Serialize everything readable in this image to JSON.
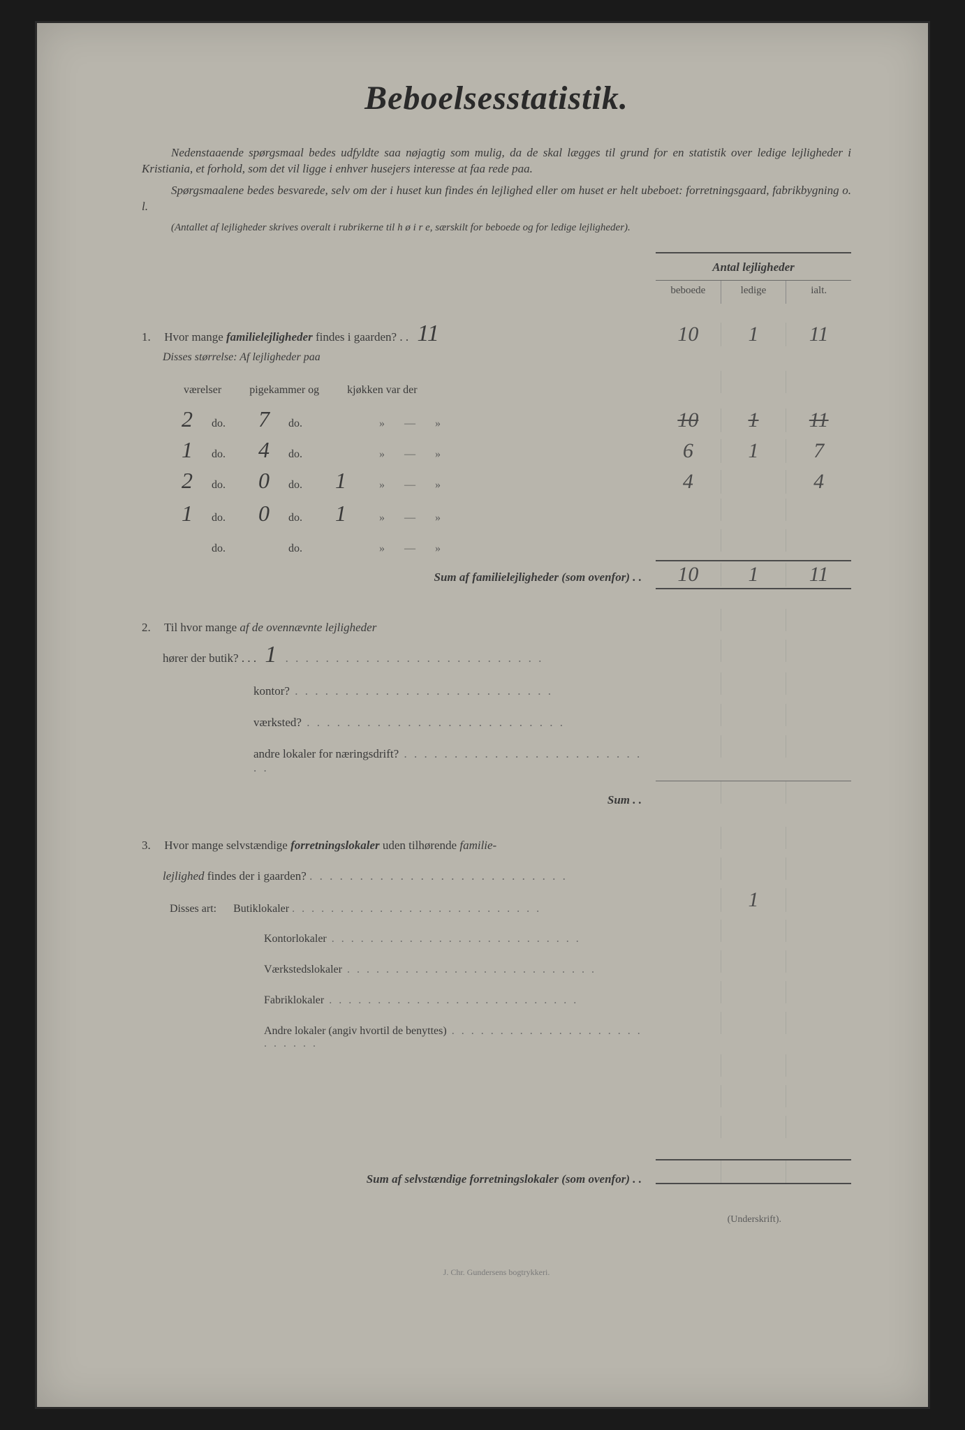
{
  "colors": {
    "page_bg": "#b8b5ac",
    "frame_bg": "#1a1a1a",
    "text": "#3a3a3a",
    "rule": "#4a4a4a",
    "handwriting": "#4a4a4a"
  },
  "title": "Beboelsesstatistik.",
  "intro": [
    "Nedenstaaende spørgsmaal bedes udfyldte saa nøjagtig som mulig, da de skal lægges til grund for en statistik over ledige lejligheder i Kristiania, et forhold, som det vil ligge i enhver husejers interesse at faa rede paa.",
    "Spørgsmaalene bedes besvarede, selv om der i huset kun findes én lejlighed eller om huset er helt ubeboet: forretningsgaard, fabrikbygning o. l."
  ],
  "intro_note": "(Antallet af lejligheder skrives overalt i rubrikerne til h ø i r e, særskilt for beboede og for ledige lejligheder).",
  "table_header": {
    "title": "Antal lejligheder",
    "cols": [
      "beboede",
      "ledige",
      "ialt."
    ]
  },
  "q1": {
    "num": "1.",
    "text_a": "Hvor mange ",
    "text_b": "familielejligheder",
    "text_c": " findes i gaarden? . .",
    "hand_total": "11",
    "cells": [
      "10",
      "1",
      "11"
    ],
    "sub_label": "Disses størrelse:   Af lejligheder paa",
    "headers": [
      "værelser",
      "pigekammer og",
      "kjøkken var der"
    ],
    "rows": [
      {
        "v": "2",
        "p": "7",
        "k": "",
        "strike": true,
        "beboede": "10",
        "ledige": "1",
        "ialt": "11"
      },
      {
        "v": "1",
        "p": "4",
        "k": "",
        "strike": false,
        "beboede": "6",
        "ledige": "1",
        "ialt": "7"
      },
      {
        "v": "2",
        "p": "0",
        "k": "1",
        "strike": false,
        "beboede": "4",
        "ledige": "",
        "ialt": "4"
      },
      {
        "v": "1",
        "p": "0",
        "k": "1",
        "strike": false,
        "beboede": "",
        "ledige": "",
        "ialt": ""
      },
      {
        "v": "",
        "p": "",
        "k": "",
        "strike": false,
        "beboede": "",
        "ledige": "",
        "ialt": ""
      }
    ],
    "do_label": "do.",
    "sum_label": "Sum af familielejligheder (som ovenfor) . .",
    "sum_cells": [
      "10",
      "1",
      "11"
    ]
  },
  "q2": {
    "num": "2.",
    "text_a": "Til hvor mange ",
    "text_b": "af de ovennævnte lejligheder",
    "line2": "hører der butik? . . .",
    "hand": "1",
    "subs": [
      "kontor?",
      "værksted?",
      "andre lokaler for næringsdrift?"
    ],
    "sum_label": "Sum . ."
  },
  "q3": {
    "num": "3.",
    "text_a": "Hvor mange selvstændige ",
    "text_b": "forretningslokaler",
    "text_c": " uden tilhørende ",
    "text_d": "familie-",
    "line2_it": "lejlighed",
    "line2": " findes der i gaarden?",
    "disses": "Disses art:",
    "subs": [
      {
        "label": "Butiklokaler",
        "val": "1"
      },
      {
        "label": "Kontorlokaler",
        "val": ""
      },
      {
        "label": "Værkstedslokaler",
        "val": ""
      },
      {
        "label": "Fabriklokaler",
        "val": ""
      },
      {
        "label": "Andre lokaler (angiv hvortil de benyttes)",
        "val": ""
      }
    ],
    "sum_label": "Sum af selvstændige forretningslokaler (som ovenfor) . ."
  },
  "underskrift": "(Underskrift).",
  "printer": "J. Chr. Gundersens bogtrykkeri."
}
